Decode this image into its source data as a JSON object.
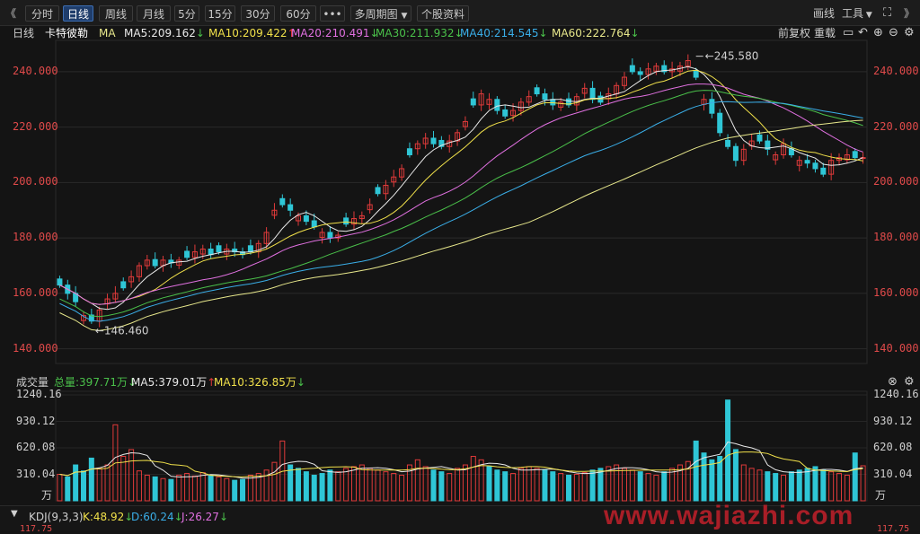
{
  "toolbar": {
    "left_chevron": "《",
    "tabs": [
      "分时",
      "日线",
      "周线",
      "月线",
      "5分",
      "15分",
      "30分",
      "60分"
    ],
    "active_tab": "日线",
    "more": "•••",
    "multi_period": "多周期图",
    "stock_info": "个股资料",
    "draw": "画线",
    "tools": "工具",
    "right_chevron": "》"
  },
  "main": {
    "period": "日线",
    "stock_name": "卡特彼勒",
    "ma_label": "MA",
    "ma": [
      {
        "text": "MA5:209.162",
        "arrow": "↓",
        "color": "#e8e8e8"
      },
      {
        "text": "MA10:209.422",
        "arrow": "↑",
        "color": "#f0e04a"
      },
      {
        "text": "MA20:210.491",
        "arrow": "↓",
        "color": "#e070e0"
      },
      {
        "text": "MA30:211.932",
        "arrow": "↓",
        "color": "#4ac04a"
      },
      {
        "text": "MA40:214.545",
        "arrow": "↓",
        "color": "#3aaee8"
      },
      {
        "text": "MA60:222.764",
        "arrow": "↓",
        "color": "#e8e88c"
      }
    ],
    "right_controls": {
      "adjust": "前复权",
      "reset": "重载"
    },
    "y_ticks": [
      "240.000",
      "220.000",
      "200.000",
      "180.000",
      "160.000",
      "140.000"
    ],
    "high_label": "245.580",
    "low_label": "146.460"
  },
  "volume": {
    "title": "成交量",
    "total": "总量:397.71万",
    "ma5": "MA5:379.01万",
    "ma10": "MA10:326.85万",
    "y_ticks": [
      "1240.16",
      "930.12",
      "620.08",
      "310.04"
    ],
    "unit": "万"
  },
  "kdj": {
    "title": "KDJ(9,3,3)",
    "k": "K:48.92",
    "d": "D:60.24",
    "j": "J:26.27",
    "edge_value": "117.75"
  },
  "watermark": "www.wajiazhi.com",
  "colors": {
    "up": "#e03a3a",
    "down": "#2fc6d6",
    "ma5": "#e8e8e8",
    "ma10": "#f0e04a",
    "ma20": "#e070e0",
    "ma30": "#4ac04a",
    "ma40": "#3aaee8",
    "ma60": "#e8e88c"
  },
  "chart_data": {
    "type": "candlestick",
    "y_range": [
      136,
      250
    ],
    "series_close_approx": [
      163,
      160,
      157,
      152,
      150,
      154,
      158,
      160,
      162,
      166,
      170,
      172,
      170,
      172,
      171,
      172,
      173,
      175,
      176,
      174,
      175,
      176,
      175,
      174,
      175,
      178,
      182,
      190,
      192,
      190,
      188,
      186,
      184,
      182,
      180,
      181,
      185,
      187,
      188,
      192,
      196,
      199,
      202,
      205,
      210,
      214,
      216,
      214,
      213,
      215,
      218,
      222,
      228,
      232,
      230,
      226,
      224,
      226,
      229,
      231,
      232,
      230,
      228,
      229,
      228,
      231,
      234,
      230,
      229,
      232,
      235,
      238,
      240,
      239,
      241,
      242,
      240,
      241,
      242,
      244,
      238,
      230,
      225,
      218,
      213,
      208,
      212,
      215,
      215,
      212,
      210,
      214,
      210,
      208,
      207,
      205,
      203,
      208,
      209,
      210,
      209,
      209
    ],
    "volume_approx_wan": [
      310,
      280,
      420,
      350,
      500,
      380,
      420,
      890,
      520,
      600,
      350,
      300,
      280,
      260,
      250,
      300,
      320,
      290,
      330,
      300,
      280,
      260,
      240,
      250,
      300,
      320,
      360,
      450,
      700,
      420,
      380,
      340,
      300,
      320,
      360,
      340,
      380,
      400,
      420,
      380,
      360,
      340,
      320,
      300,
      420,
      480,
      400,
      360,
      340,
      320,
      380,
      420,
      520,
      480,
      400,
      360,
      340,
      320,
      380,
      400,
      380,
      360,
      340,
      320,
      300,
      310,
      330,
      360,
      380,
      400,
      420,
      380,
      360,
      340,
      320,
      300,
      340,
      380,
      420,
      460,
      700,
      560,
      480,
      520,
      1180,
      600,
      420,
      380,
      360,
      340,
      320,
      300,
      340,
      360,
      380,
      400,
      360,
      340,
      320,
      300,
      560,
      410
    ]
  }
}
